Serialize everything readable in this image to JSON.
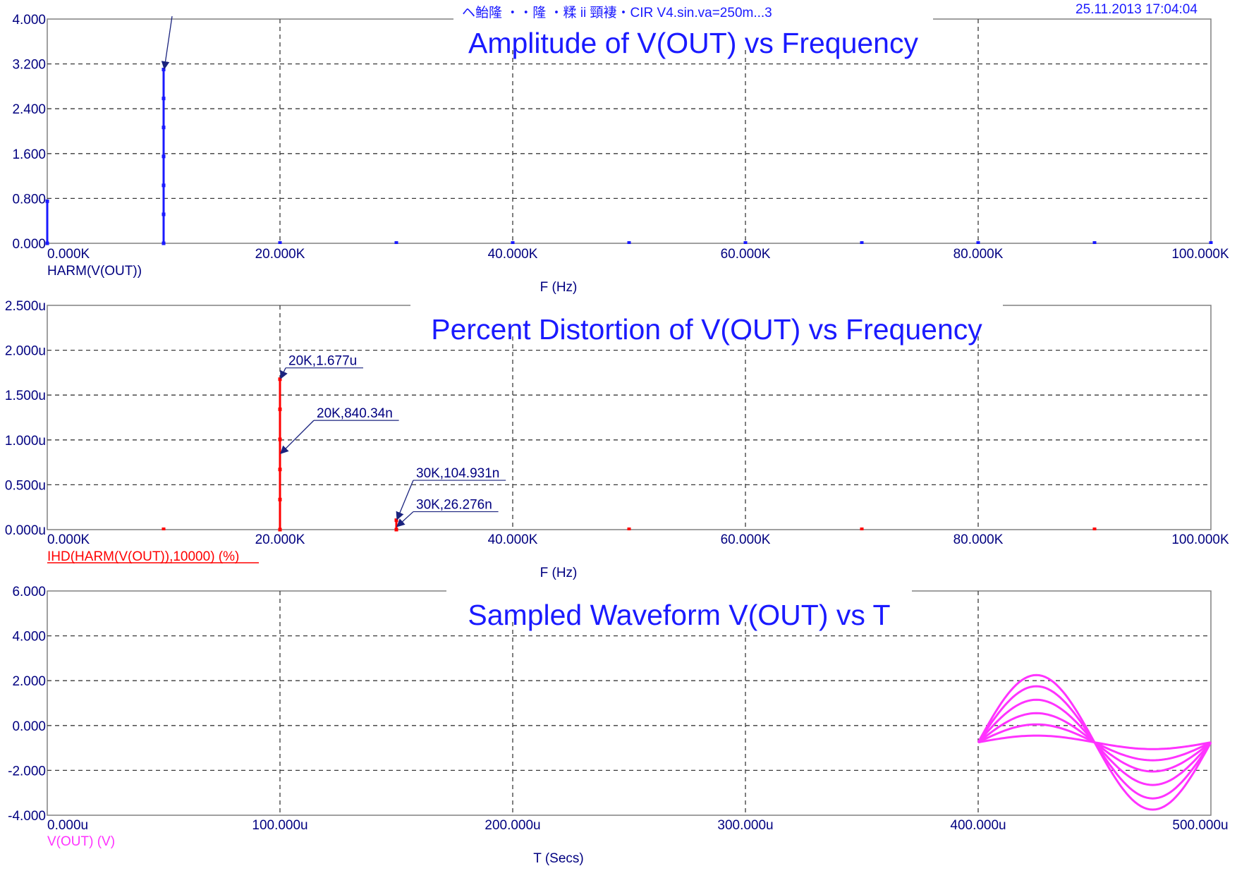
{
  "header": {
    "title": "ヘ鲐隆 ・・隆 ・糅 ii 頸褄・CIR V4.sin.va=250m...3",
    "date": "25.11.2013 17:04:04"
  },
  "colors": {
    "frame": "#808080",
    "grid": "#3a3a3a",
    "text": "#000080",
    "title": "#1a1aff",
    "harm": "#1a1aff",
    "ihd": "#ff0000",
    "vout": "#ff33ff",
    "marker": "#1a237e"
  },
  "chart_data": [
    {
      "type": "bar",
      "title": "Amplitude of V(OUT) vs Frequency",
      "xlabel": "F (Hz)",
      "ylabel": "",
      "xlim": [
        0,
        100000
      ],
      "ylim": [
        0,
        4
      ],
      "x_tick_labels": [
        "0.000K",
        "20.000K",
        "40.000K",
        "60.000K",
        "80.000K",
        "100.000K"
      ],
      "y_tick_labels": [
        "0.000",
        "0.800",
        "1.600",
        "2.400",
        "3.200",
        "4.000"
      ],
      "grid": true,
      "series": [
        {
          "name": "HARM(V(OUT))",
          "color": "#1a1aff",
          "x": [
            0,
            10000,
            20000,
            30000,
            40000,
            50000,
            60000,
            70000,
            80000,
            90000,
            100000
          ],
          "values": [
            0.75,
            3.1,
            0,
            0,
            0,
            0,
            0,
            0,
            0,
            0,
            0
          ]
        }
      ],
      "annotations": [
        {
          "label": "",
          "x": 10000,
          "y": 3.1
        }
      ]
    },
    {
      "type": "bar",
      "title": "Percent Distortion of V(OUT) vs Frequency",
      "xlabel": "F (Hz)",
      "ylabel": "",
      "xlim": [
        0,
        100000
      ],
      "ylim": [
        0,
        2.5
      ],
      "y_unit": "u",
      "x_tick_labels": [
        "0.000K",
        "20.000K",
        "40.000K",
        "60.000K",
        "80.000K",
        "100.000K"
      ],
      "y_tick_labels": [
        "0.000u",
        "0.500u",
        "1.000u",
        "1.500u",
        "2.000u",
        "2.500u"
      ],
      "grid": true,
      "series": [
        {
          "name": "IHD(HARM(V(OUT)),10000) (%)",
          "color": "#ff0000",
          "x": [
            10000,
            20000,
            30000,
            50000,
            70000,
            90000
          ],
          "values": [
            0,
            1.677,
            0.104931,
            0,
            0,
            0
          ]
        }
      ],
      "annotations": [
        {
          "label": "20K,1.677u",
          "x": 20000,
          "y": 1.677
        },
        {
          "label": "20K,840.34n",
          "x": 20000,
          "y": 0.84034
        },
        {
          "label": "30K,104.931n",
          "x": 30000,
          "y": 0.104931
        },
        {
          "label": "30K,26.276n",
          "x": 30000,
          "y": 0.026276
        }
      ]
    },
    {
      "type": "line",
      "title": "Sampled Waveform  V(OUT) vs T",
      "xlabel": "T (Secs)",
      "ylabel": "",
      "xlim": [
        0,
        500
      ],
      "ylim": [
        -4,
        6
      ],
      "x_unit": "u",
      "x_tick_labels": [
        "0.000u",
        "100.000u",
        "200.000u",
        "300.000u",
        "400.000u",
        "500.000u"
      ],
      "y_tick_labels": [
        "-4.000",
        "-2.000",
        "0.000",
        "2.000",
        "4.000",
        "6.000"
      ],
      "grid": true,
      "series": [
        {
          "name": "V(OUT) (V)",
          "color": "#ff33ff",
          "x_start": 400,
          "x_end": 500,
          "offset": -0.75,
          "amplitudes": [
            0.3,
            0.8,
            1.3,
            1.9,
            2.5,
            3.0
          ]
        }
      ]
    }
  ]
}
